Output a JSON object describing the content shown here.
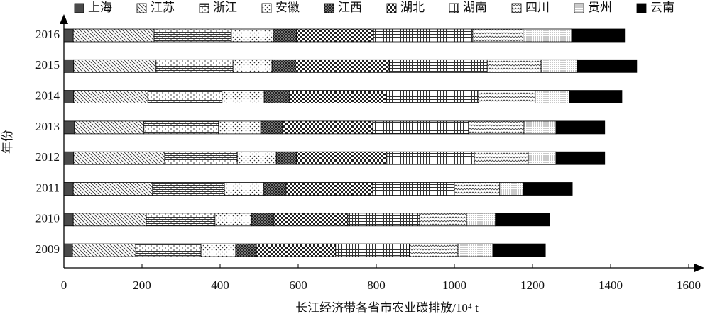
{
  "chart_data": {
    "type": "stacked-barh",
    "xlabel": "长江经济带各省市农业碳排放/10⁴ t",
    "ylabel": "年份",
    "categories": [
      "2016",
      "2015",
      "2014",
      "2013",
      "2012",
      "2011",
      "2010",
      "2009"
    ],
    "xlim": [
      0,
      1600
    ],
    "xticks": [
      0,
      200,
      400,
      600,
      800,
      1000,
      1200,
      1400,
      1600
    ],
    "series": [
      {
        "name": "上海",
        "pattern": "solid-gray",
        "values": [
          24,
          25,
          25,
          27,
          25,
          24,
          24,
          22
        ]
      },
      {
        "name": "江苏",
        "pattern": "diagonal",
        "values": [
          207,
          211,
          190,
          178,
          233,
          203,
          187,
          162
        ]
      },
      {
        "name": "浙江",
        "pattern": "brick",
        "values": [
          198,
          197,
          190,
          191,
          186,
          184,
          176,
          167
        ]
      },
      {
        "name": "安徽",
        "pattern": "sparse-dots",
        "values": [
          107,
          100,
          108,
          108,
          100,
          100,
          93,
          89
        ]
      },
      {
        "name": "江西",
        "pattern": "dark-checker",
        "values": [
          60,
          60,
          65,
          56,
          52,
          58,
          58,
          53
        ]
      },
      {
        "name": "湖北",
        "pattern": "checker",
        "values": [
          197,
          240,
          247,
          231,
          231,
          222,
          189,
          203
        ]
      },
      {
        "name": "湖南",
        "pattern": "grid",
        "values": [
          254,
          251,
          237,
          245,
          224,
          209,
          184,
          189
        ]
      },
      {
        "name": "四川",
        "pattern": "wave",
        "values": [
          129,
          138,
          145,
          142,
          138,
          116,
          120,
          124
        ]
      },
      {
        "name": "贵州",
        "pattern": "fine-dots",
        "values": [
          124,
          93,
          88,
          82,
          71,
          60,
          74,
          89
        ]
      },
      {
        "name": "云南",
        "pattern": "solid-black",
        "values": [
          136,
          152,
          134,
          125,
          125,
          126,
          139,
          135
        ]
      }
    ]
  }
}
